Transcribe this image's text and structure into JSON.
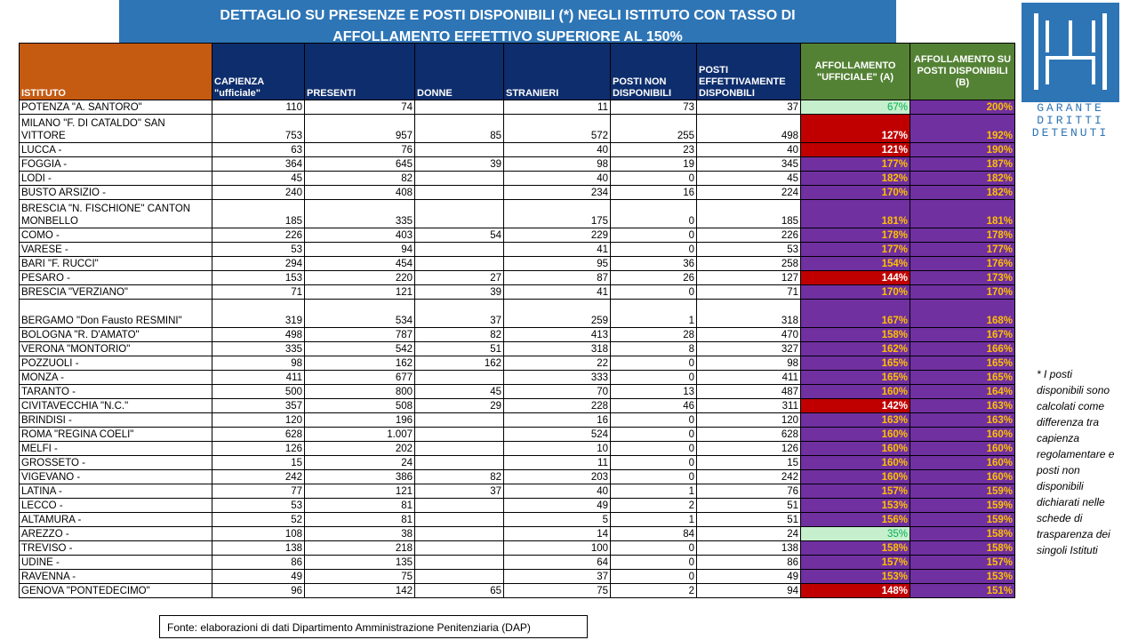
{
  "title": {
    "line1": "DETTAGLIO  SU PRESENZE E POSTI DISPONIBILI (*) NEGLI ISTITUTO CON TASSO DI",
    "line2": "AFFOLLAMENTO  EFFETTIVO SUPERIORE AL 150%"
  },
  "table": {
    "headers": {
      "istituto": "ISTITUTO",
      "capienza": "CAPIENZA \"ufficiale\"",
      "presenti": "PRESENTI",
      "donne": "DONNE",
      "stranieri": "STRANIERI",
      "posti_non": "POSTI NON DISPONIBILI",
      "posti_eff": "POSTI EFFETTIVAMENTE DISPONBILI",
      "aff_a": "AFFOLLAMENTO \"UFFICIALE\" (A)",
      "aff_b": "AFFOLLAMENTO SU POSTI DISPONIBILI (B)"
    },
    "rows": [
      {
        "name": "POTENZA  \"A. SANTORO\"",
        "cap": "110",
        "pres": "74",
        "donne": "",
        "stran": "11",
        "pnd": "73",
        "ped": "37",
        "a": "67%",
        "b": "200%",
        "a_status": "low",
        "tall": false
      },
      {
        "name": "MILANO  \"F. DI CATALDO\"  SAN VITTORE",
        "cap": "753",
        "pres": "957",
        "donne": "85",
        "stran": "572",
        "pnd": "255",
        "ped": "498",
        "a": "127%",
        "b": "192%",
        "a_status": "red",
        "tall": true
      },
      {
        "name": "LUCCA  -",
        "cap": "63",
        "pres": "76",
        "donne": "",
        "stran": "40",
        "pnd": "23",
        "ped": "40",
        "a": "121%",
        "b": "190%",
        "a_status": "red",
        "tall": false
      },
      {
        "name": "FOGGIA  -",
        "cap": "364",
        "pres": "645",
        "donne": "39",
        "stran": "98",
        "pnd": "19",
        "ped": "345",
        "a": "177%",
        "b": "187%",
        "a_status": "high",
        "tall": false
      },
      {
        "name": "LODI  -",
        "cap": "45",
        "pres": "82",
        "donne": "",
        "stran": "40",
        "pnd": "0",
        "ped": "45",
        "a": "182%",
        "b": "182%",
        "a_status": "high",
        "tall": false
      },
      {
        "name": "BUSTO  ARSIZIO  -",
        "cap": "240",
        "pres": "408",
        "donne": "",
        "stran": "234",
        "pnd": "16",
        "ped": "224",
        "a": "170%",
        "b": "182%",
        "a_status": "high",
        "tall": false
      },
      {
        "name": "BRESCIA  \"N. FISCHIONE\"  CANTON MONBELLO",
        "cap": "185",
        "pres": "335",
        "donne": "",
        "stran": "175",
        "pnd": "0",
        "ped": "185",
        "a": "181%",
        "b": "181%",
        "a_status": "high",
        "tall": true
      },
      {
        "name": "COMO  -",
        "cap": "226",
        "pres": "403",
        "donne": "54",
        "stran": "229",
        "pnd": "0",
        "ped": "226",
        "a": "178%",
        "b": "178%",
        "a_status": "high",
        "tall": false
      },
      {
        "name": "VARESE  -",
        "cap": "53",
        "pres": "94",
        "donne": "",
        "stran": "41",
        "pnd": "0",
        "ped": "53",
        "a": "177%",
        "b": "177%",
        "a_status": "high",
        "tall": false
      },
      {
        "name": "BARI  \"F. RUCCI\"",
        "cap": "294",
        "pres": "454",
        "donne": "",
        "stran": "95",
        "pnd": "36",
        "ped": "258",
        "a": "154%",
        "b": "176%",
        "a_status": "high",
        "tall": false
      },
      {
        "name": "PESARO  -",
        "cap": "153",
        "pres": "220",
        "donne": "27",
        "stran": "87",
        "pnd": "26",
        "ped": "127",
        "a": "144%",
        "b": "173%",
        "a_status": "red",
        "tall": false
      },
      {
        "name": "BRESCIA  \"VERZIANO\"",
        "cap": "71",
        "pres": "121",
        "donne": "39",
        "stran": "41",
        "pnd": "0",
        "ped": "71",
        "a": "170%",
        "b": "170%",
        "a_status": "high",
        "tall": false
      },
      {
        "name": "BERGAMO  \"Don  Fausto RESMINI\"",
        "cap": "319",
        "pres": "534",
        "donne": "37",
        "stran": "259",
        "pnd": "1",
        "ped": "318",
        "a": "167%",
        "b": "168%",
        "a_status": "high",
        "tall": true
      },
      {
        "name": "BOLOGNA  \"R. D'AMATO\"",
        "cap": "498",
        "pres": "787",
        "donne": "82",
        "stran": "413",
        "pnd": "28",
        "ped": "470",
        "a": "158%",
        "b": "167%",
        "a_status": "high",
        "tall": false
      },
      {
        "name": "VERONA  \"MONTORIO\"",
        "cap": "335",
        "pres": "542",
        "donne": "51",
        "stran": "318",
        "pnd": "8",
        "ped": "327",
        "a": "162%",
        "b": "166%",
        "a_status": "high",
        "tall": false
      },
      {
        "name": "POZZUOLI  -",
        "cap": "98",
        "pres": "162",
        "donne": "162",
        "stran": "22",
        "pnd": "0",
        "ped": "98",
        "a": "165%",
        "b": "165%",
        "a_status": "high",
        "tall": false
      },
      {
        "name": "MONZA  -",
        "cap": "411",
        "pres": "677",
        "donne": "",
        "stran": "333",
        "pnd": "0",
        "ped": "411",
        "a": "165%",
        "b": "165%",
        "a_status": "high",
        "tall": false
      },
      {
        "name": "TARANTO  -",
        "cap": "500",
        "pres": "800",
        "donne": "45",
        "stran": "70",
        "pnd": "13",
        "ped": "487",
        "a": "160%",
        "b": "164%",
        "a_status": "high",
        "tall": false
      },
      {
        "name": "CIVITAVECCHIA  \"N.C.\"",
        "cap": "357",
        "pres": "508",
        "donne": "29",
        "stran": "228",
        "pnd": "46",
        "ped": "311",
        "a": "142%",
        "b": "163%",
        "a_status": "red",
        "tall": false
      },
      {
        "name": "BRINDISI  -",
        "cap": "120",
        "pres": "196",
        "donne": "",
        "stran": "16",
        "pnd": "0",
        "ped": "120",
        "a": "163%",
        "b": "163%",
        "a_status": "high",
        "tall": false
      },
      {
        "name": "ROMA  \"REGINA  COELI\"",
        "cap": "628",
        "pres": "1.007",
        "donne": "",
        "stran": "524",
        "pnd": "0",
        "ped": "628",
        "a": "160%",
        "b": "160%",
        "a_status": "high",
        "tall": false
      },
      {
        "name": "MELFI  -",
        "cap": "126",
        "pres": "202",
        "donne": "",
        "stran": "10",
        "pnd": "0",
        "ped": "126",
        "a": "160%",
        "b": "160%",
        "a_status": "high",
        "tall": false
      },
      {
        "name": "GROSSETO  -",
        "cap": "15",
        "pres": "24",
        "donne": "",
        "stran": "11",
        "pnd": "0",
        "ped": "15",
        "a": "160%",
        "b": "160%",
        "a_status": "high",
        "tall": false
      },
      {
        "name": "VIGEVANO  -",
        "cap": "242",
        "pres": "386",
        "donne": "82",
        "stran": "203",
        "pnd": "0",
        "ped": "242",
        "a": "160%",
        "b": "160%",
        "a_status": "high",
        "tall": false
      },
      {
        "name": "LATINA  -",
        "cap": "77",
        "pres": "121",
        "donne": "37",
        "stran": "40",
        "pnd": "1",
        "ped": "76",
        "a": "157%",
        "b": "159%",
        "a_status": "high",
        "tall": false
      },
      {
        "name": "LECCO  -",
        "cap": "53",
        "pres": "81",
        "donne": "",
        "stran": "49",
        "pnd": "2",
        "ped": "51",
        "a": "153%",
        "b": "159%",
        "a_status": "high",
        "tall": false
      },
      {
        "name": "ALTAMURA  -",
        "cap": "52",
        "pres": "81",
        "donne": "",
        "stran": "5",
        "pnd": "1",
        "ped": "51",
        "a": "156%",
        "b": "159%",
        "a_status": "high",
        "tall": false
      },
      {
        "name": "AREZZO  -",
        "cap": "108",
        "pres": "38",
        "donne": "",
        "stran": "14",
        "pnd": "84",
        "ped": "24",
        "a": "35%",
        "b": "158%",
        "a_status": "low",
        "tall": false
      },
      {
        "name": "TREVISO  -",
        "cap": "138",
        "pres": "218",
        "donne": "",
        "stran": "100",
        "pnd": "0",
        "ped": "138",
        "a": "158%",
        "b": "158%",
        "a_status": "high",
        "tall": false
      },
      {
        "name": "UDINE  -",
        "cap": "86",
        "pres": "135",
        "donne": "",
        "stran": "64",
        "pnd": "0",
        "ped": "86",
        "a": "157%",
        "b": "157%",
        "a_status": "high",
        "tall": false
      },
      {
        "name": "RAVENNA  -",
        "cap": "49",
        "pres": "75",
        "donne": "",
        "stran": "37",
        "pnd": "0",
        "ped": "49",
        "a": "153%",
        "b": "153%",
        "a_status": "high",
        "tall": false
      },
      {
        "name": "GENOVA  \"PONTEDECIMO\"",
        "cap": "96",
        "pres": "142",
        "donne": "65",
        "stran": "75",
        "pnd": "2",
        "ped": "94",
        "a": "148%",
        "b": "151%",
        "a_status": "red",
        "tall": false
      }
    ]
  },
  "colors": {
    "low_bg": "#c6efce",
    "low_fg": "#00b050",
    "red_bg": "#c00000",
    "red_fg": "#ffffff",
    "high_bg": "#7030a0",
    "high_fg": "#ffc000",
    "b_bg": "#7030a0",
    "b_fg": "#ffc000"
  },
  "logo": {
    "line1": "GARANTE",
    "line2": "DIRITTI",
    "line3": "DETENUTI"
  },
  "note": "* I posti disponibili sono calcolati come differenza tra capienza regolamentare e posti non disponibili dichiarati nelle schede di trasparenza dei singoli Istituti",
  "source": "Fonte: elaborazioni di dati Dipartimento Amministrazione Penitenziaria (DAP)"
}
